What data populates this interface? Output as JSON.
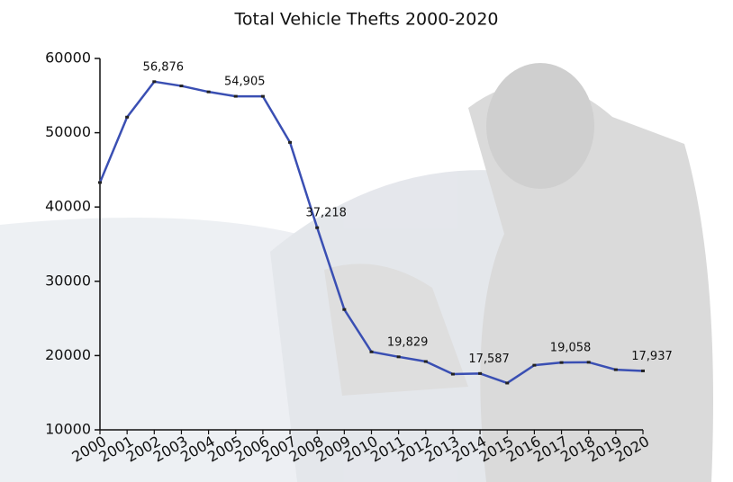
{
  "chart_data": {
    "type": "line",
    "title": "Total Vehicle Thefts 2000-2020",
    "categories": [
      "2000",
      "2001",
      "2002",
      "2003",
      "2004",
      "2005",
      "2006",
      "2007",
      "2008",
      "2009",
      "2010",
      "2011",
      "2012",
      "2013",
      "2014",
      "2015",
      "2016",
      "2017",
      "2018",
      "2019",
      "2020"
    ],
    "values": [
      43300,
      52100,
      56876,
      56300,
      55500,
      54905,
      54900,
      48700,
      37218,
      26200,
      20500,
      19829,
      19200,
      17500,
      17587,
      16300,
      18700,
      19058,
      19100,
      18100,
      17937
    ],
    "value_labels": [
      null,
      null,
      "56,876",
      null,
      null,
      "54,905",
      null,
      null,
      "37,218",
      null,
      null,
      "19,829",
      null,
      null,
      "17,587",
      null,
      null,
      "19,058",
      null,
      null,
      "17,937"
    ],
    "color": "#3a4fb3",
    "ylim": [
      10000,
      60000
    ],
    "yticks": [
      10000,
      20000,
      30000,
      40000,
      50000,
      60000
    ]
  }
}
